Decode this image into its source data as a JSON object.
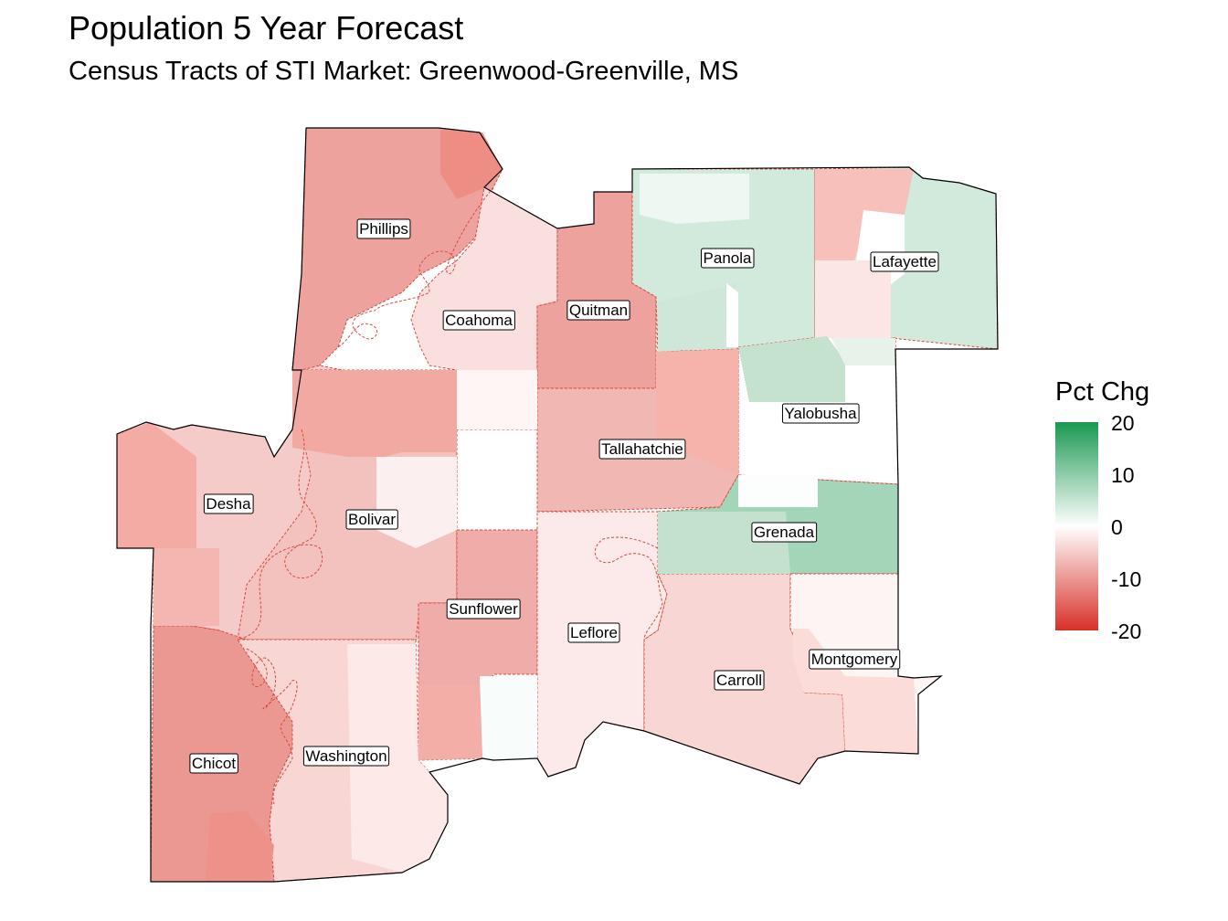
{
  "title": "Population 5 Year Forecast",
  "subtitle": "Census Tracts of STI Market: Greenwood-Greenville, MS",
  "legend": {
    "title": "Pct Chg",
    "ticks": [
      "20",
      "10",
      "0",
      "-10",
      "-20"
    ],
    "range": [
      -20,
      20
    ],
    "colors": {
      "low": "#d73027",
      "mid": "#ffffff",
      "high": "#1a9850"
    }
  },
  "counties": [
    {
      "name": "Phillips",
      "value": -9
    },
    {
      "name": "Coahoma",
      "value": -3
    },
    {
      "name": "Quitman",
      "value": -9
    },
    {
      "name": "Panola",
      "value": 4
    },
    {
      "name": "Lafayette",
      "value": 4
    },
    {
      "name": "Yalobusha",
      "value": 0
    },
    {
      "name": "Tallahatchie",
      "value": -7
    },
    {
      "name": "Desha",
      "value": -5
    },
    {
      "name": "Bolivar",
      "value": -6
    },
    {
      "name": "Grenada",
      "value": 8
    },
    {
      "name": "Sunflower",
      "value": -8
    },
    {
      "name": "Leflore",
      "value": -2
    },
    {
      "name": "Carroll",
      "value": -4
    },
    {
      "name": "Montgomery",
      "value": -1
    },
    {
      "name": "Chicot",
      "value": -10
    },
    {
      "name": "Washington",
      "value": -4
    }
  ]
}
